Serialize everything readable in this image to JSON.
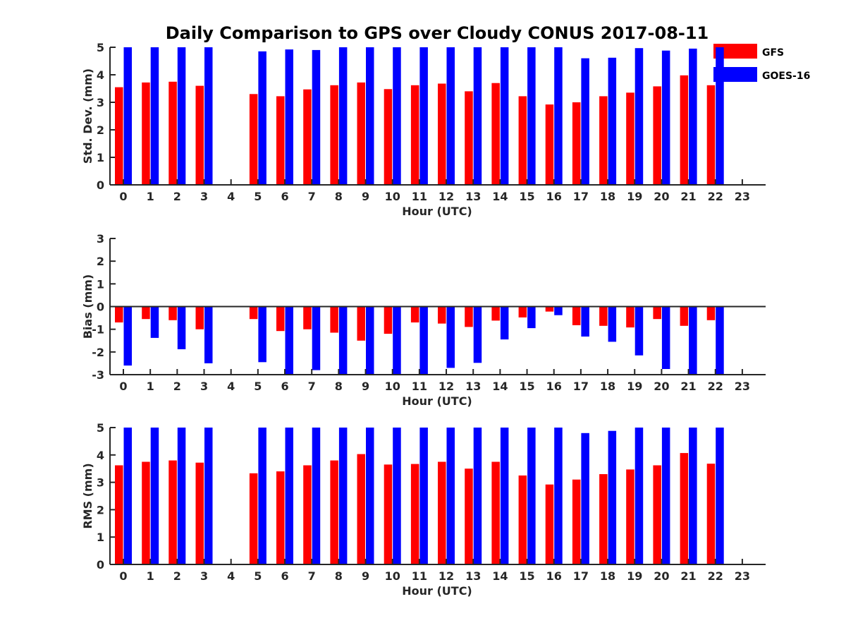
{
  "title": "Daily Comparison to GPS over Cloudy CONUS 2017-08-11",
  "colors": {
    "GFS": "#ff0000",
    "GOES-16": "#0000ff",
    "axis": "#262626"
  },
  "legend": {
    "position": "top-right",
    "entries": [
      "GFS",
      "GOES-16"
    ]
  },
  "chart_data": [
    {
      "type": "bar",
      "id": "std",
      "xlabel": "Hour (UTC)",
      "ylabel": "Std. Dev. (mm)",
      "ylim": [
        0,
        5
      ],
      "yticks": [
        0,
        1,
        2,
        3,
        4,
        5
      ],
      "categories": [
        "0",
        "1",
        "2",
        "3",
        "4",
        "5",
        "6",
        "7",
        "8",
        "9",
        "10",
        "11",
        "12",
        "13",
        "14",
        "15",
        "16",
        "17",
        "18",
        "19",
        "20",
        "21",
        "22",
        "23"
      ],
      "series": [
        {
          "name": "GFS",
          "values": [
            3.55,
            3.72,
            3.75,
            3.6,
            null,
            3.3,
            3.22,
            3.47,
            3.62,
            3.72,
            3.48,
            3.62,
            3.68,
            3.4,
            3.7,
            3.22,
            2.92,
            3.0,
            3.22,
            3.35,
            3.58,
            3.98,
            3.62,
            null
          ]
        },
        {
          "name": "GOES-16",
          "values": [
            5.0,
            5.0,
            5.0,
            5.0,
            null,
            4.85,
            4.92,
            4.9,
            5.0,
            5.0,
            5.0,
            5.0,
            5.0,
            5.0,
            5.0,
            5.0,
            5.0,
            4.6,
            4.62,
            4.97,
            4.88,
            4.95,
            5.0,
            null
          ]
        }
      ]
    },
    {
      "type": "bar",
      "id": "bias",
      "xlabel": "Hour (UTC)",
      "ylabel": "Bias (mm)",
      "ylim": [
        -3,
        3
      ],
      "yticks": [
        -3,
        -2,
        -1,
        0,
        1,
        2,
        3
      ],
      "categories": [
        "0",
        "1",
        "2",
        "3",
        "4",
        "5",
        "6",
        "7",
        "8",
        "9",
        "10",
        "11",
        "12",
        "13",
        "14",
        "15",
        "16",
        "17",
        "18",
        "19",
        "20",
        "21",
        "22",
        "23"
      ],
      "series": [
        {
          "name": "GFS",
          "values": [
            -0.7,
            -0.55,
            -0.6,
            -1.0,
            null,
            -0.55,
            -1.08,
            -1.0,
            -1.15,
            -1.5,
            -1.2,
            -0.7,
            -0.75,
            -0.9,
            -0.62,
            -0.48,
            -0.22,
            -0.82,
            -0.85,
            -0.92,
            -0.55,
            -0.85,
            -0.6,
            null
          ]
        },
        {
          "name": "GOES-16",
          "values": [
            -2.6,
            -1.38,
            -1.88,
            -2.5,
            null,
            -2.45,
            -3.0,
            -2.8,
            -3.0,
            -3.0,
            -3.0,
            -3.0,
            -2.7,
            -2.48,
            -1.45,
            -0.95,
            -0.38,
            -1.32,
            -1.55,
            -2.15,
            -2.75,
            -3.0,
            -3.0,
            null
          ]
        }
      ]
    },
    {
      "type": "bar",
      "id": "rms",
      "xlabel": "Hour (UTC)",
      "ylabel": "RMS (mm)",
      "ylim": [
        0,
        5
      ],
      "yticks": [
        0,
        1,
        2,
        3,
        4,
        5
      ],
      "categories": [
        "0",
        "1",
        "2",
        "3",
        "4",
        "5",
        "6",
        "7",
        "8",
        "9",
        "10",
        "11",
        "12",
        "13",
        "14",
        "15",
        "16",
        "17",
        "18",
        "19",
        "20",
        "21",
        "22",
        "23"
      ],
      "series": [
        {
          "name": "GFS",
          "values": [
            3.62,
            3.75,
            3.8,
            3.72,
            null,
            3.33,
            3.4,
            3.62,
            3.8,
            4.03,
            3.65,
            3.67,
            3.75,
            3.5,
            3.75,
            3.25,
            2.92,
            3.1,
            3.3,
            3.47,
            3.62,
            4.07,
            3.68,
            null
          ]
        },
        {
          "name": "GOES-16",
          "values": [
            5.0,
            5.0,
            5.0,
            5.0,
            null,
            5.0,
            5.0,
            5.0,
            5.0,
            5.0,
            5.0,
            5.0,
            5.0,
            5.0,
            5.0,
            5.0,
            5.0,
            4.8,
            4.88,
            5.0,
            5.0,
            5.0,
            5.0,
            null
          ]
        }
      ]
    }
  ]
}
